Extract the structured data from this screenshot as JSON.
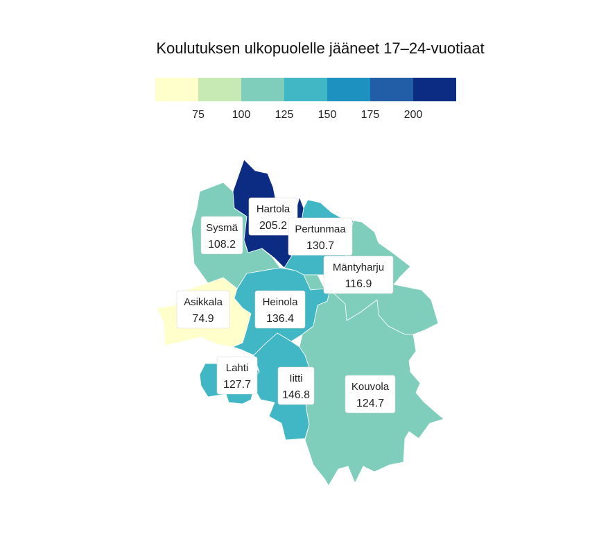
{
  "title": "Koulutuksen ulkopuolelle jääneet 17–24-vuotiaat",
  "legend": {
    "bins": [
      {
        "color": "#ffffcc"
      },
      {
        "color": "#c7e9b4"
      },
      {
        "color": "#7fcdbb"
      },
      {
        "color": "#41b6c4"
      },
      {
        "color": "#1d91c0"
      },
      {
        "color": "#225ea8"
      },
      {
        "color": "#0c2c84"
      }
    ],
    "ticks": [
      "75",
      "100",
      "125",
      "150",
      "175",
      "200"
    ]
  },
  "regions": [
    {
      "name": "Hartola",
      "value": "205.2",
      "color": "#0c2c84"
    },
    {
      "name": "Sysmä",
      "value": "108.2",
      "color": "#7fcdbb"
    },
    {
      "name": "Pertunmaa",
      "value": "130.7",
      "color": "#41b6c4"
    },
    {
      "name": "Mäntyharju",
      "value": "116.9",
      "color": "#7fcdbb"
    },
    {
      "name": "Asikkala",
      "value": "74.9",
      "color": "#ffffcc"
    },
    {
      "name": "Heinola",
      "value": "136.4",
      "color": "#41b6c4"
    },
    {
      "name": "Lahti",
      "value": "127.7",
      "color": "#41b6c4"
    },
    {
      "name": "Iitti",
      "value": "146.8",
      "color": "#41b6c4"
    },
    {
      "name": "Kouvola",
      "value": "124.7",
      "color": "#7fcdbb"
    }
  ]
}
